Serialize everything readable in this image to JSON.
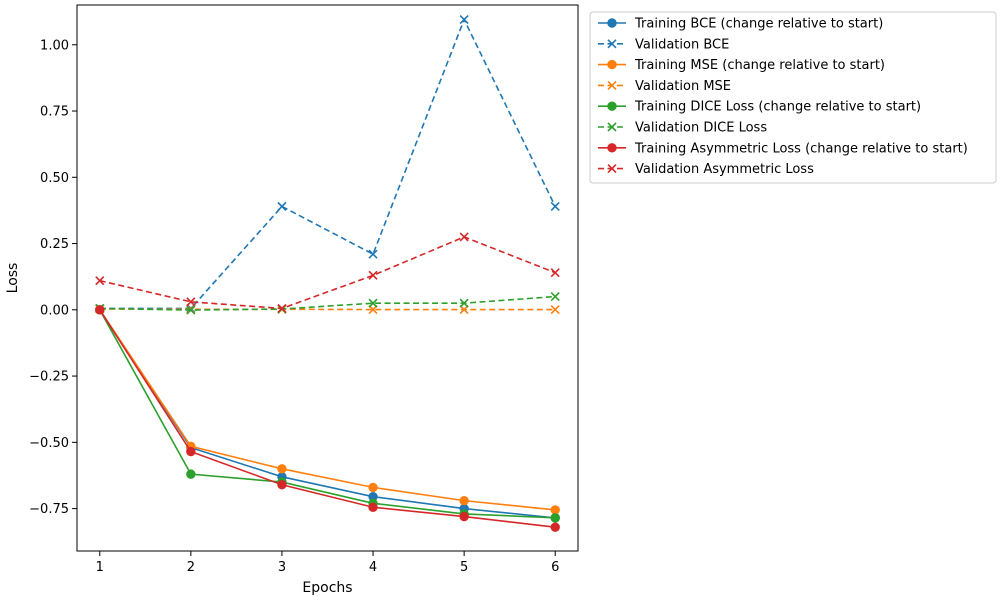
{
  "chart_data": {
    "type": "line",
    "xlabel": "Epochs",
    "ylabel": "Loss",
    "xlim": [
      0.75,
      6.25
    ],
    "ylim": [
      -0.91,
      1.15
    ],
    "x": [
      1,
      2,
      3,
      4,
      5,
      6
    ],
    "xticks": [
      "1",
      "2",
      "3",
      "4",
      "5",
      "6"
    ],
    "yticks": [
      {
        "value": 1.0,
        "label": "1.00"
      },
      {
        "value": 0.75,
        "label": "0.75"
      },
      {
        "value": 0.5,
        "label": "0.50"
      },
      {
        "value": 0.25,
        "label": "0.25"
      },
      {
        "value": 0.0,
        "label": "0.00"
      },
      {
        "value": -0.25,
        "label": "−0.25"
      },
      {
        "value": -0.5,
        "label": "−0.50"
      },
      {
        "value": -0.75,
        "label": "−0.75"
      }
    ],
    "grid": false,
    "legend_position": "outside-top-right",
    "series": [
      {
        "name": "Training BCE (change relative to start)",
        "color": "#1f77b4",
        "style": "solid",
        "marker": "circle",
        "values": [
          0.0,
          -0.52,
          -0.63,
          -0.705,
          -0.75,
          -0.785
        ]
      },
      {
        "name": "Validation BCE",
        "color": "#1f77b4",
        "style": "dashed",
        "marker": "x",
        "values": [
          0.005,
          0.005,
          0.39,
          0.21,
          1.095,
          0.39
        ]
      },
      {
        "name": "Training MSE (change relative to start)",
        "color": "#ff7f0e",
        "style": "solid",
        "marker": "circle",
        "values": [
          0.0,
          -0.515,
          -0.6,
          -0.67,
          -0.72,
          -0.755
        ]
      },
      {
        "name": "Validation MSE",
        "color": "#ff7f0e",
        "style": "dashed",
        "marker": "x",
        "values": [
          0.003,
          0.002,
          0.002,
          0.001,
          0.001,
          0.001
        ]
      },
      {
        "name": "Training DICE Loss (change relative to start)",
        "color": "#2ca02c",
        "style": "solid",
        "marker": "circle",
        "values": [
          0.0,
          -0.62,
          -0.65,
          -0.73,
          -0.77,
          -0.785
        ]
      },
      {
        "name": "Validation DICE Loss",
        "color": "#2ca02c",
        "style": "dashed",
        "marker": "x",
        "values": [
          0.005,
          -0.001,
          0.003,
          0.025,
          0.025,
          0.05
        ]
      },
      {
        "name": "Training Asymmetric Loss (change relative to start)",
        "color": "#d62728",
        "style": "solid",
        "marker": "circle",
        "values": [
          0.0,
          -0.535,
          -0.66,
          -0.745,
          -0.78,
          -0.82
        ]
      },
      {
        "name": "Validation Asymmetric Loss",
        "color": "#d62728",
        "style": "dashed",
        "marker": "x",
        "values": [
          0.11,
          0.03,
          0.005,
          0.13,
          0.275,
          0.14
        ]
      }
    ]
  }
}
